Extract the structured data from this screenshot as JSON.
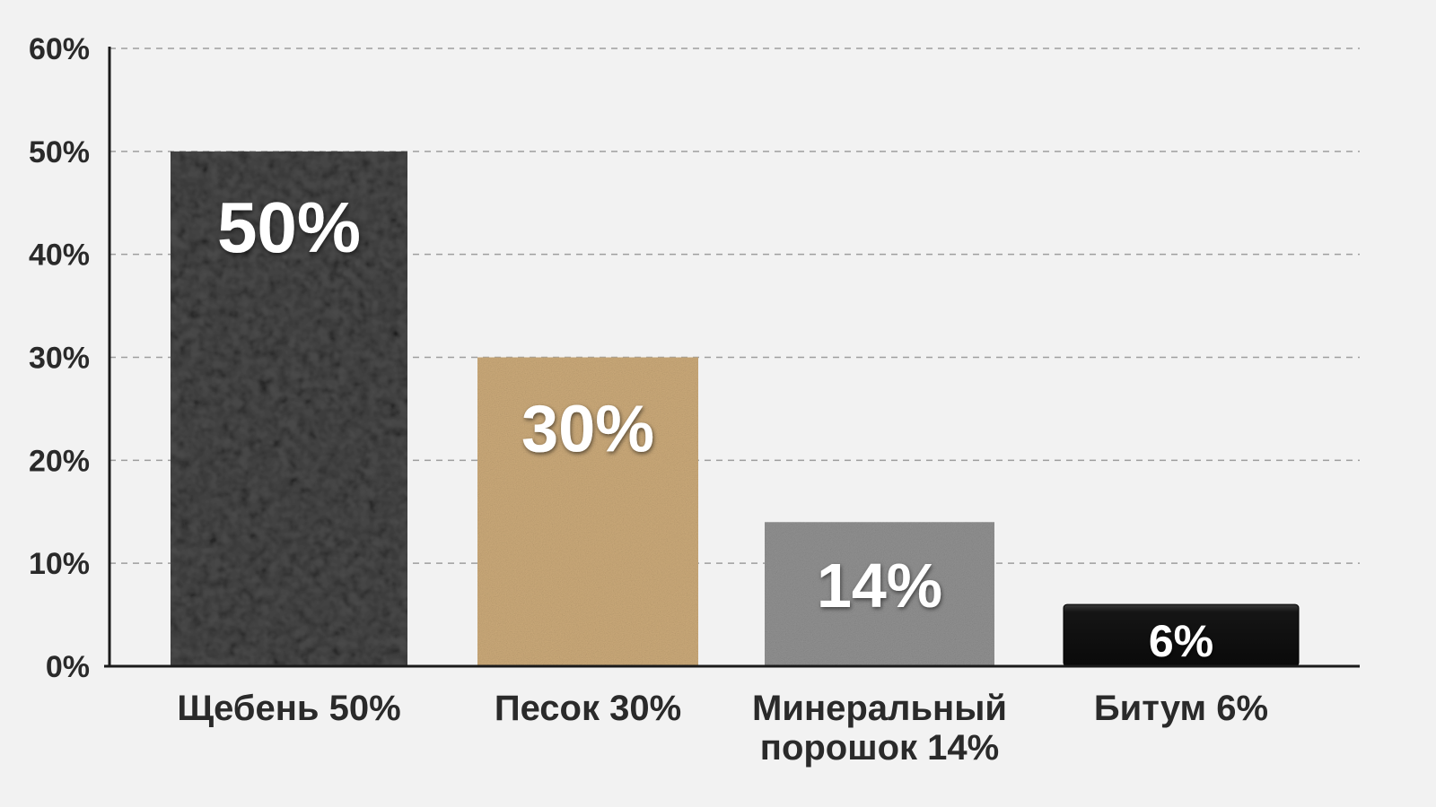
{
  "chart_data": {
    "type": "bar",
    "title": "",
    "xlabel": "",
    "ylabel": "",
    "categories": [
      [
        "Щебень 50%"
      ],
      [
        "Песок 30%"
      ],
      [
        "Минеральный",
        "порошок 14%"
      ],
      [
        "Битум 6%"
      ]
    ],
    "values": [
      50,
      30,
      14,
      6
    ],
    "value_labels": [
      "50%",
      "30%",
      "14%",
      "6%"
    ],
    "ylim": [
      0,
      60
    ],
    "yticks": [
      0,
      10,
      20,
      30,
      40,
      50,
      60
    ],
    "ytick_labels": [
      "0%",
      "10%",
      "20%",
      "30%",
      "40%",
      "50%",
      "60%"
    ],
    "grid": true,
    "legend": "none",
    "bar_styles": [
      {
        "material": "crushed-stone",
        "color": "#4a4a4a"
      },
      {
        "material": "sand",
        "color": "#c9a878"
      },
      {
        "material": "mineral-powder",
        "color": "#8f8f8f"
      },
      {
        "material": "bitumen",
        "color": "#141414"
      }
    ]
  }
}
